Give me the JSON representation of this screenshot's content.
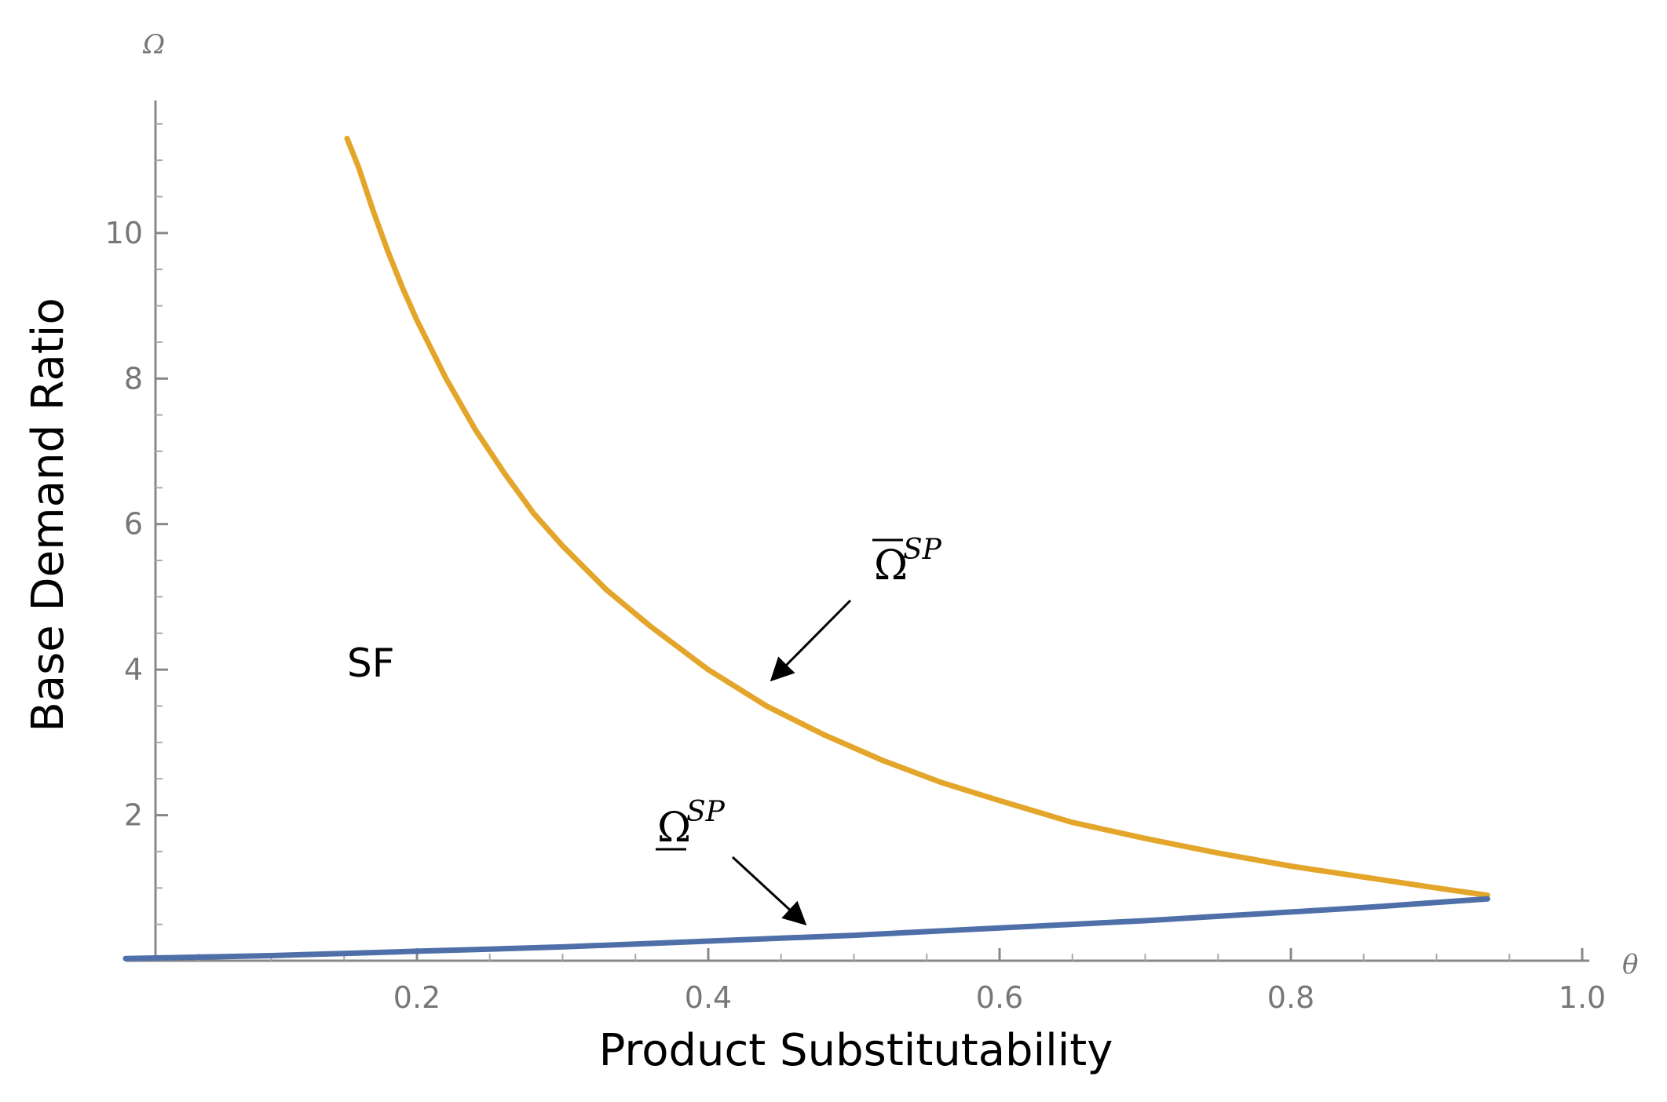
{
  "chart_data": {
    "type": "line",
    "title": "",
    "xlabel": "Product Substitutability",
    "ylabel": "Base Demand Ratio",
    "x_axis_symbol": "θ",
    "y_axis_symbol": "Ω",
    "xlim": [
      0,
      1.0
    ],
    "ylim": [
      0,
      11.8
    ],
    "x_ticks": [
      0.2,
      0.4,
      0.6,
      0.8,
      1.0
    ],
    "x_tick_labels": [
      "0.2",
      "0.4",
      "0.6",
      "0.8",
      "1.0"
    ],
    "y_ticks": [
      2,
      4,
      6,
      8,
      10
    ],
    "y_tick_labels": [
      "2",
      "4",
      "6",
      "8",
      "10"
    ],
    "grid": false,
    "series": [
      {
        "color": "#e3a62b",
        "x": [
          0.152,
          0.16,
          0.17,
          0.18,
          0.19,
          0.2,
          0.22,
          0.24,
          0.26,
          0.28,
          0.3,
          0.33,
          0.36,
          0.4,
          0.44,
          0.48,
          0.52,
          0.56,
          0.6,
          0.65,
          0.7,
          0.75,
          0.8,
          0.85,
          0.9,
          0.935
        ],
        "values": [
          11.3,
          10.9,
          10.3,
          9.75,
          9.25,
          8.8,
          8.0,
          7.3,
          6.7,
          6.15,
          5.7,
          5.1,
          4.6,
          4.0,
          3.5,
          3.1,
          2.75,
          2.45,
          2.2,
          1.9,
          1.68,
          1.48,
          1.3,
          1.15,
          1.0,
          0.9
        ]
      },
      {
        "color": "#4e6fa8",
        "x": [
          0.0,
          0.05,
          0.1,
          0.15,
          0.2,
          0.25,
          0.3,
          0.35,
          0.4,
          0.45,
          0.5,
          0.55,
          0.6,
          0.65,
          0.7,
          0.75,
          0.8,
          0.85,
          0.9,
          0.935
        ],
        "values": [
          0.03,
          0.05,
          0.07,
          0.1,
          0.13,
          0.16,
          0.19,
          0.23,
          0.27,
          0.31,
          0.35,
          0.4,
          0.45,
          0.5,
          0.55,
          0.61,
          0.67,
          0.73,
          0.8,
          0.85
        ]
      }
    ],
    "annotations": [
      {
        "text": "SF",
        "x": 0.16,
        "y": 4.0
      },
      {
        "text": "Ω",
        "superscript": "SP",
        "decoration": "overline",
        "x": 0.53,
        "y": 5.5,
        "arrow_to": [
          0.43,
          3.9
        ]
      },
      {
        "text": "Ω",
        "superscript": "SP",
        "decoration": "underline",
        "x": 0.38,
        "y": 1.9,
        "arrow_to": [
          0.48,
          0.5
        ]
      }
    ]
  }
}
